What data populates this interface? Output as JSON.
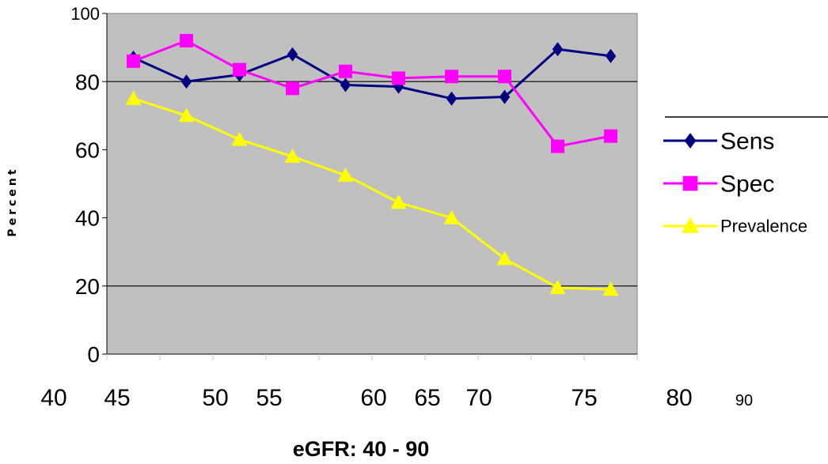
{
  "chart_data": {
    "type": "line",
    "title": "",
    "xlabel": "eGFR: 40 - 90",
    "ylabel": "Percent",
    "x": [
      47,
      52,
      57,
      62,
      67,
      72,
      77,
      82,
      87,
      92
    ],
    "x_tick_labels": [
      "40",
      "45",
      "50",
      "55",
      "60",
      "65",
      "70",
      "75",
      "80",
      "90"
    ],
    "ylim": [
      0,
      100
    ],
    "y_ticks": [
      0,
      20,
      40,
      60,
      80,
      100
    ],
    "grid": "horizontal lines at 20 and 80",
    "legend": "right",
    "plot_background": "#c0c0c0",
    "series": [
      {
        "name": "Sens",
        "marker": "diamond",
        "color": "#000080",
        "values": [
          87,
          80,
          82,
          88,
          79,
          78.5,
          75,
          75.5,
          89.5,
          87.5
        ]
      },
      {
        "name": "Spec",
        "marker": "square",
        "color": "#ff00ff",
        "values": [
          86,
          92,
          83.5,
          78,
          83,
          81,
          81.5,
          81.5,
          61,
          64
        ]
      },
      {
        "name": "Prevalence",
        "marker": "triangle",
        "color": "#ffff00",
        "values": [
          75,
          70,
          63,
          58,
          52.5,
          44.5,
          40,
          28,
          19.5,
          19
        ]
      }
    ]
  }
}
